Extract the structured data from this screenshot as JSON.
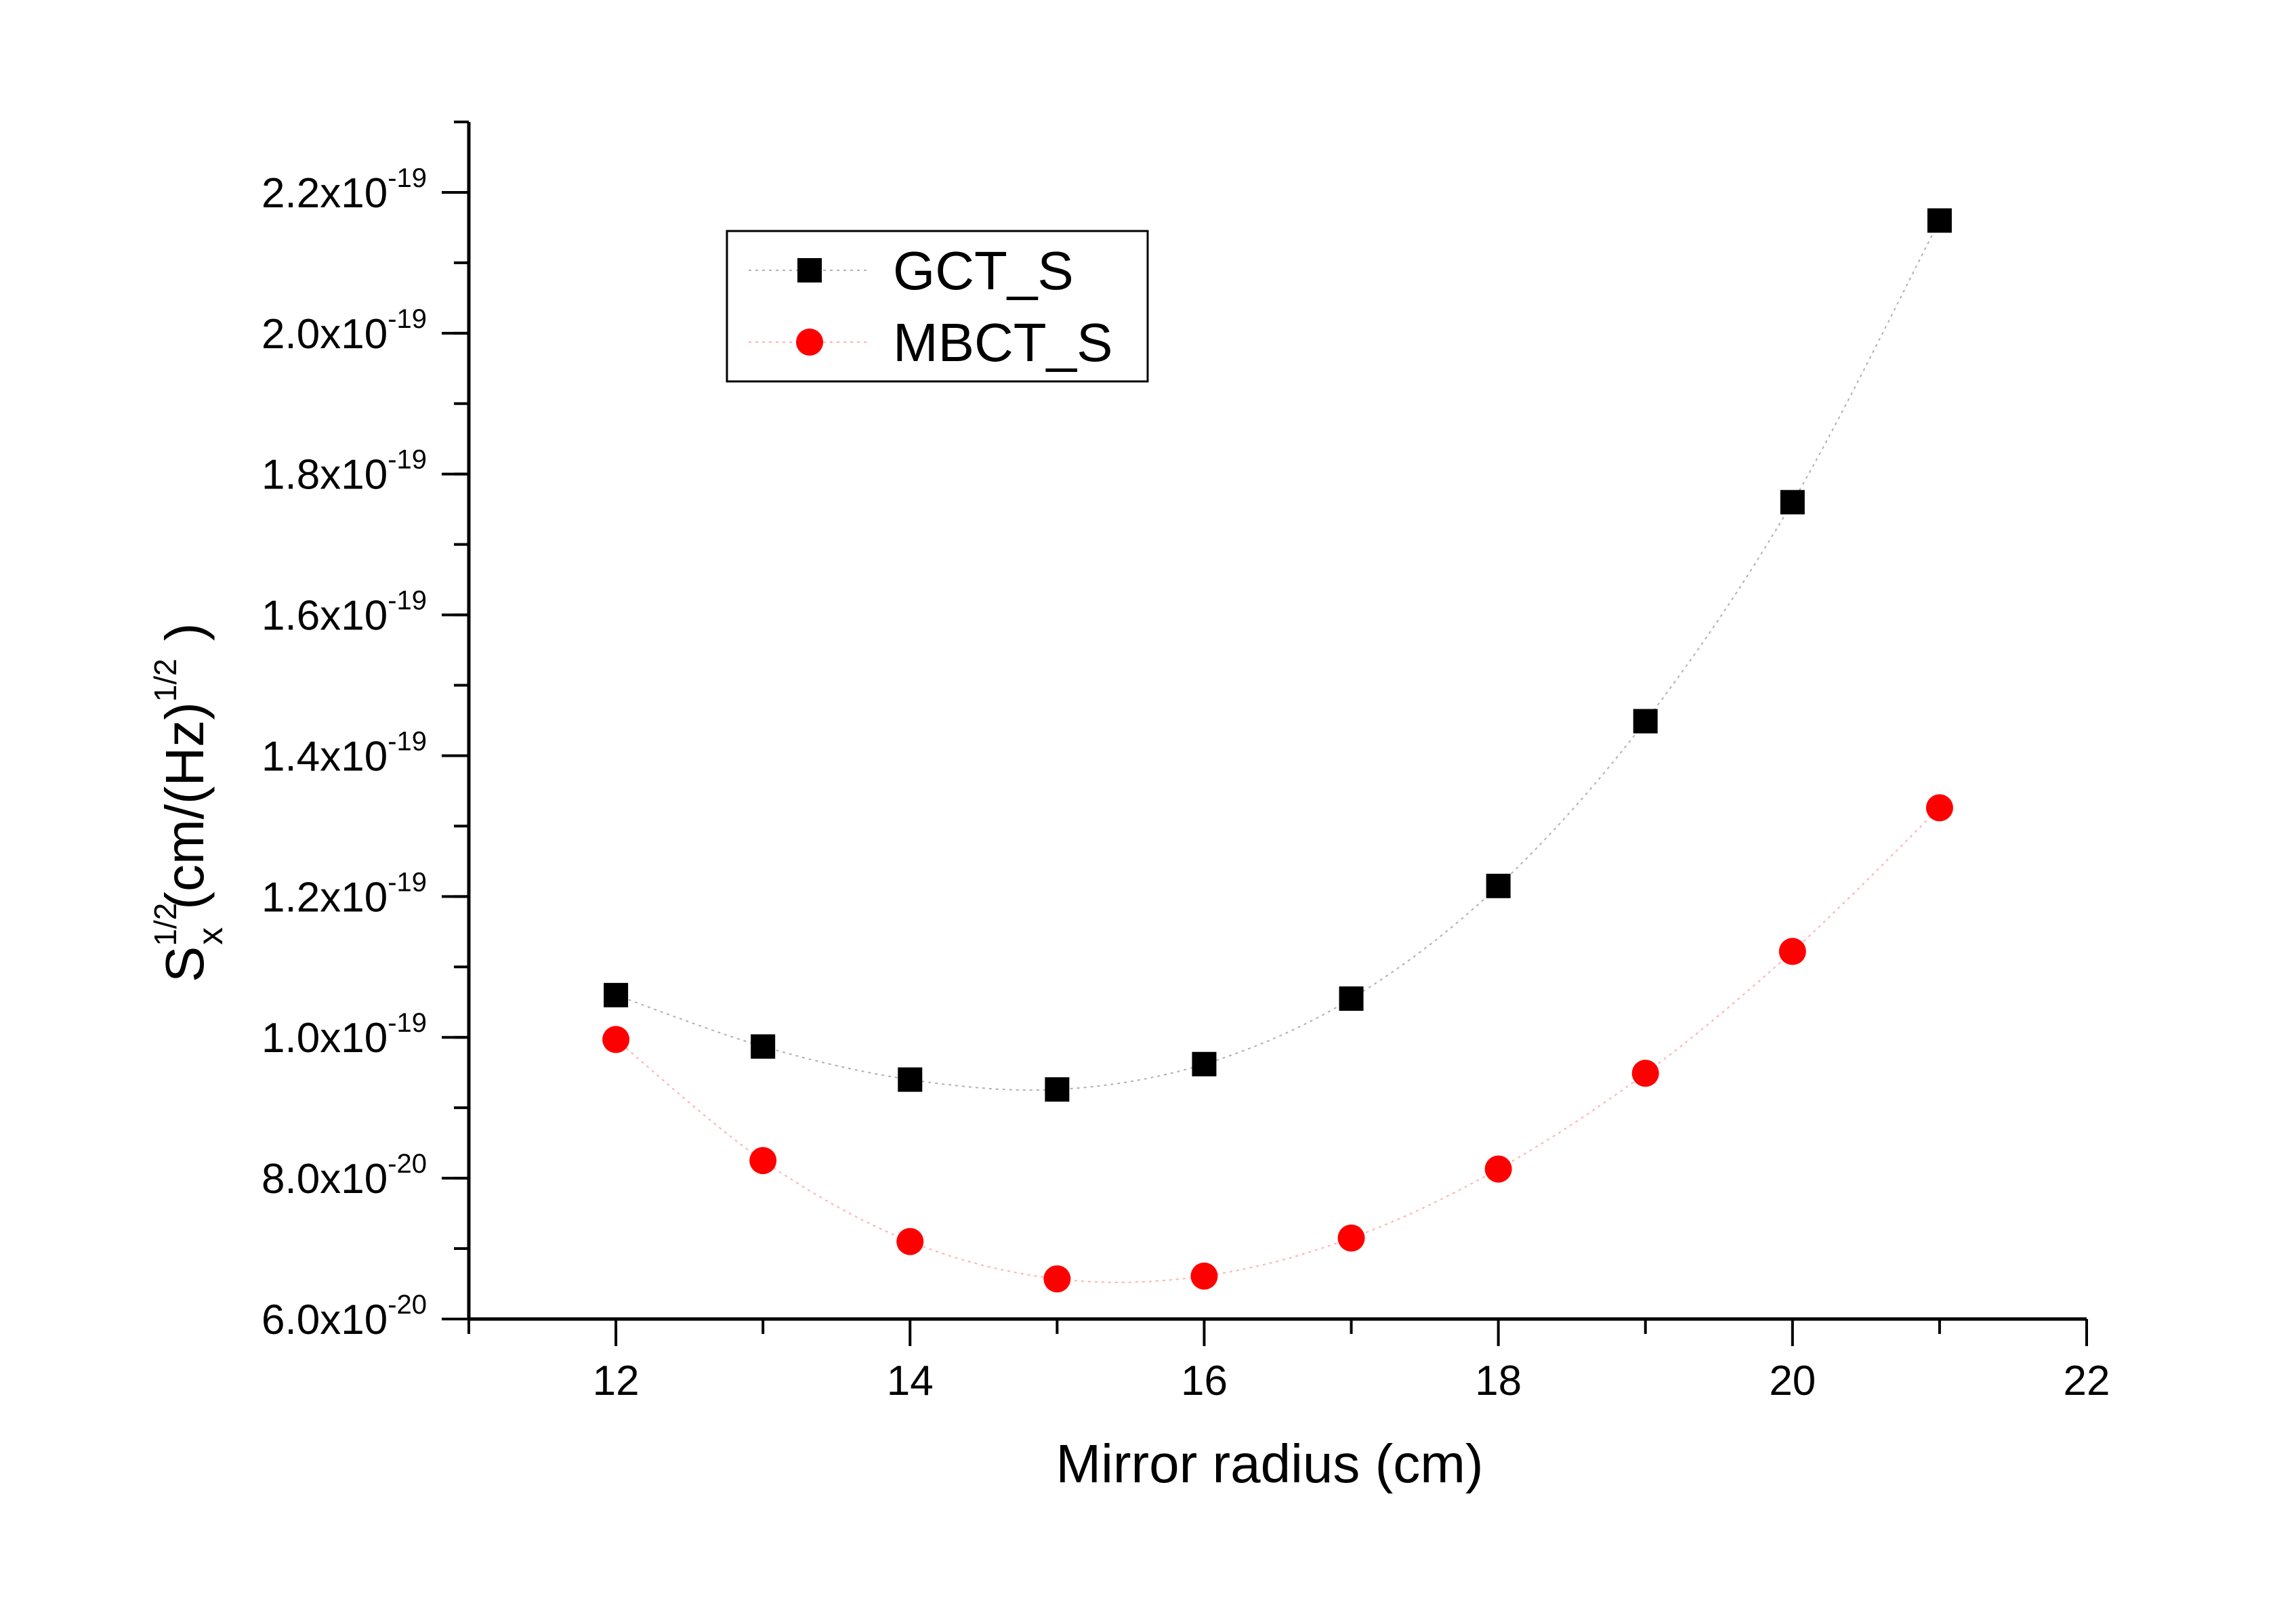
{
  "chart_data": {
    "type": "scatter",
    "title": "",
    "xlabel": "Mirror radius (cm)",
    "ylabel": {
      "base": "S",
      "sup": "1/2",
      "sub": "x",
      "unit_open": "(cm/(Hz)",
      "unit_sup": "1/2",
      "unit_close": ")"
    },
    "xlim": [
      11,
      22
    ],
    "ylim": [
      6e-20,
      2.3e-19
    ],
    "x_ticks": [
      12,
      14,
      16,
      18,
      20,
      22
    ],
    "y_ticks": [
      {
        "value": 6e-20,
        "mantissa": "6.0x10",
        "exponent": "-20"
      },
      {
        "value": 8e-20,
        "mantissa": "8.0x10",
        "exponent": "-20"
      },
      {
        "value": 1e-19,
        "mantissa": "1.0x10",
        "exponent": "-19"
      },
      {
        "value": 1.2e-19,
        "mantissa": "1.2x10",
        "exponent": "-19"
      },
      {
        "value": 1.4e-19,
        "mantissa": "1.4x10",
        "exponent": "-19"
      },
      {
        "value": 1.6e-19,
        "mantissa": "1.6x10",
        "exponent": "-19"
      },
      {
        "value": 1.8e-19,
        "mantissa": "1.8x10",
        "exponent": "-19"
      },
      {
        "value": 2e-19,
        "mantissa": "2.0x10",
        "exponent": "-19"
      },
      {
        "value": 2.2e-19,
        "mantissa": "2.2x10",
        "exponent": "-19"
      }
    ],
    "legend_position": "top-left",
    "grid": false,
    "x": [
      12,
      13,
      14,
      15,
      16,
      17,
      18,
      19,
      20,
      21
    ],
    "series": [
      {
        "name": "GCT_S",
        "marker": "square",
        "color": "#000000",
        "values": [
          1.06e-19,
          9.87e-20,
          9.4e-20,
          9.26e-20,
          9.62e-20,
          1.055e-19,
          1.215e-19,
          1.449e-19,
          1.76e-19,
          2.16e-19
        ]
      },
      {
        "name": "MBCT_S",
        "marker": "circle",
        "color": "#ff0000",
        "values": [
          9.97e-20,
          8.25e-20,
          7.1e-20,
          6.57e-20,
          6.61e-20,
          7.15e-20,
          8.13e-20,
          9.49e-20,
          1.122e-19,
          1.326e-19
        ]
      }
    ]
  }
}
